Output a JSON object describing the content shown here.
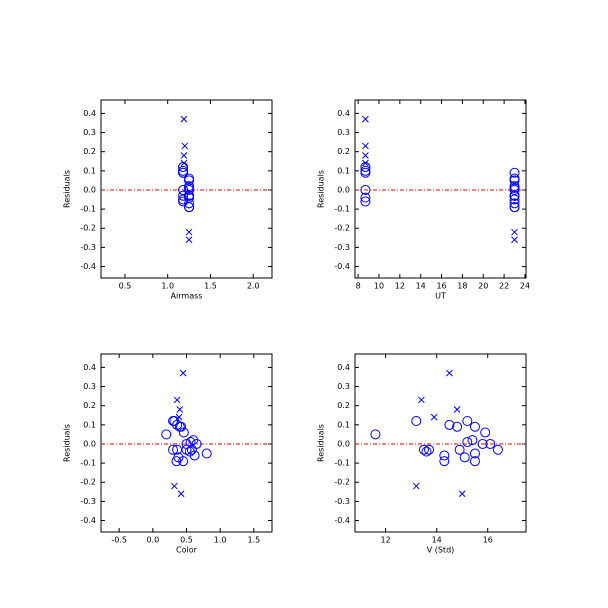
{
  "chart_data": [
    {
      "type": "scatter",
      "ylabel": "Residuals",
      "xlabel": "Airmass",
      "xlim": [
        0.22,
        2.22
      ],
      "ylim": [
        -0.46,
        0.47
      ],
      "xticks": [
        0.5,
        {
          "value": 1,
          "label": "1.0"
        },
        1.5,
        {
          "value": 2,
          "label": "2.0"
        }
      ],
      "yticks": [
        -0.4,
        -0.3,
        -0.2,
        -0.1,
        {
          "value": 0,
          "label": "0.0"
        },
        0.1,
        0.2,
        0.3,
        0.4
      ],
      "hline": 0,
      "hline_color": "#dd0000",
      "series": [
        {
          "marker": "x",
          "color": "#0000ff",
          "x": [
            1.19,
            1.2,
            1.19,
            1.19,
            1.25,
            1.25
          ],
          "values": [
            0.37,
            0.23,
            0.18,
            0.14,
            -0.22,
            -0.26
          ]
        },
        {
          "marker": "circle",
          "color": "#0000ff",
          "x": [
            1.25,
            1.18,
            1.18,
            1.25,
            1.25,
            1.18,
            1.25,
            1.18,
            1.18,
            1.25,
            1.25,
            1.18,
            1.25,
            1.25,
            1.18,
            1.18,
            1.25,
            1.25,
            1.25,
            1.18,
            1.25
          ],
          "values": [
            0.05,
            0.12,
            -0.03,
            -0.03,
            -0.04,
            -0.06,
            -0.09,
            0.1,
            0.09,
            -0.03,
            -0.07,
            0.12,
            0.01,
            0.02,
            0.09,
            -0.05,
            -0.09,
            0.0,
            0.06,
            0.0,
            -0.03
          ]
        }
      ]
    },
    {
      "type": "scatter",
      "ylabel": "Residuals",
      "xlabel": "UT",
      "xlim": [
        7.7,
        24.1
      ],
      "ylim": [
        -0.46,
        0.47
      ],
      "xticks": [
        8,
        10,
        12,
        14,
        16,
        18,
        20,
        22,
        24
      ],
      "yticks": [
        -0.4,
        -0.3,
        -0.2,
        -0.1,
        {
          "value": 0,
          "label": "0.0"
        },
        0.1,
        0.2,
        0.3,
        0.4
      ],
      "hline": 0,
      "hline_color": "#dd0000",
      "series": [
        {
          "marker": "x",
          "color": "#0000ff",
          "x": [
            8.7,
            8.7,
            8.7,
            8.7,
            23.0,
            23.0
          ],
          "values": [
            0.37,
            0.23,
            0.18,
            0.14,
            -0.22,
            -0.26
          ]
        },
        {
          "marker": "circle",
          "color": "#0000ff",
          "x": [
            23.0,
            8.7,
            23.0,
            23.0,
            8.7,
            8.7,
            23.0,
            8.7,
            23.0,
            23.0,
            23.0,
            8.7,
            23.0,
            23.0,
            8.7,
            23.0,
            23.0,
            23.0,
            23.0,
            8.7,
            23.0
          ],
          "values": [
            0.05,
            0.12,
            -0.03,
            -0.03,
            -0.04,
            -0.06,
            -0.09,
            0.1,
            0.09,
            -0.03,
            -0.07,
            0.12,
            0.01,
            0.02,
            0.09,
            -0.05,
            -0.09,
            0.0,
            0.06,
            0.0,
            -0.03
          ]
        }
      ]
    },
    {
      "type": "scatter",
      "ylabel": "Residuals",
      "xlabel": "Color",
      "xlim": [
        -0.77,
        1.77
      ],
      "ylim": [
        -0.46,
        0.47
      ],
      "xticks": [
        -0.5,
        {
          "value": 0,
          "label": "0.0"
        },
        0.5,
        {
          "value": 1,
          "label": "1.0"
        },
        1.5
      ],
      "yticks": [
        -0.4,
        -0.3,
        -0.2,
        -0.1,
        {
          "value": 0,
          "label": "0.0"
        },
        0.1,
        0.2,
        0.3,
        0.4
      ],
      "hline": 0,
      "hline_color": "#dd0000",
      "series": [
        {
          "marker": "x",
          "color": "#0000ff",
          "x": [
            0.45,
            0.36,
            0.4,
            0.39,
            0.32,
            0.42
          ],
          "values": [
            0.37,
            0.23,
            0.18,
            0.14,
            -0.22,
            -0.26
          ]
        },
        {
          "marker": "circle",
          "color": "#0000ff",
          "x": [
            0.2,
            0.3,
            0.5,
            0.36,
            0.55,
            0.62,
            0.45,
            0.36,
            0.4,
            0.3,
            0.38,
            0.32,
            0.56,
            0.6,
            0.42,
            0.8,
            0.35,
            0.5,
            0.46,
            0.65,
            0.58
          ],
          "values": [
            0.05,
            0.12,
            -0.03,
            -0.03,
            -0.04,
            -0.06,
            -0.09,
            0.1,
            0.09,
            -0.03,
            -0.07,
            0.12,
            0.01,
            0.02,
            0.09,
            -0.05,
            -0.09,
            0.0,
            0.06,
            0.0,
            -0.03
          ]
        }
      ]
    },
    {
      "type": "scatter",
      "ylabel": "Residuals",
      "xlabel": "V (Std)",
      "xlim": [
        10.8,
        17.5
      ],
      "ylim": [
        -0.46,
        0.47
      ],
      "xticks": [
        12,
        14,
        16
      ],
      "yticks": [
        -0.4,
        -0.3,
        -0.2,
        -0.1,
        {
          "value": 0,
          "label": "0.0"
        },
        0.1,
        0.2,
        0.3,
        0.4
      ],
      "hline": 0,
      "hline_color": "#dd0000",
      "series": [
        {
          "marker": "x",
          "color": "#0000ff",
          "x": [
            14.5,
            13.4,
            14.8,
            13.9,
            13.2,
            15.0
          ],
          "values": [
            0.37,
            0.23,
            0.18,
            0.14,
            -0.22,
            -0.26
          ]
        },
        {
          "marker": "circle",
          "color": "#0000ff",
          "x": [
            11.6,
            13.2,
            13.5,
            13.7,
            13.6,
            14.3,
            14.3,
            14.5,
            14.8,
            14.9,
            15.1,
            15.2,
            15.2,
            15.4,
            15.5,
            15.5,
            15.5,
            15.8,
            15.9,
            16.1,
            16.4
          ],
          "values": [
            0.05,
            0.12,
            -0.03,
            -0.03,
            -0.04,
            -0.06,
            -0.09,
            0.1,
            0.09,
            -0.03,
            -0.07,
            0.12,
            0.01,
            0.02,
            0.09,
            -0.05,
            -0.09,
            0.0,
            0.06,
            0.0,
            -0.03
          ]
        }
      ]
    }
  ]
}
